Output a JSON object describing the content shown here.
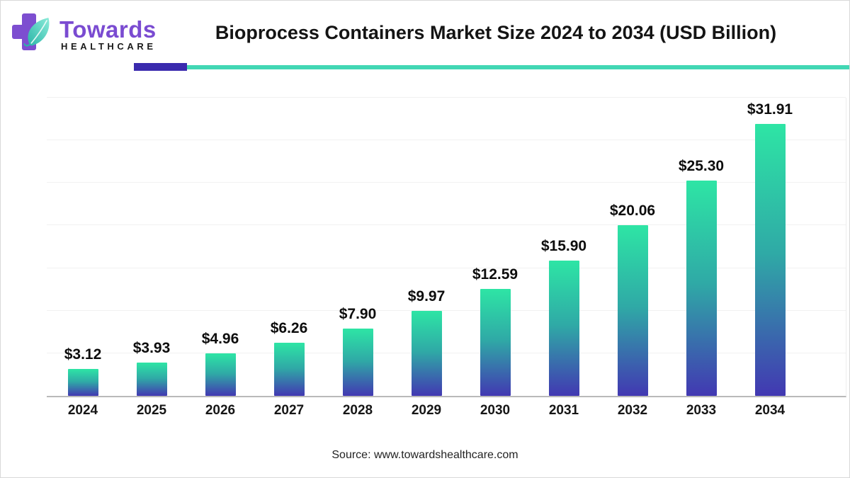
{
  "logo": {
    "brand": "Towards",
    "subtitle": "HEALTHCARE",
    "brand_color": "#7a4bd1",
    "cross_color": "#7d4ed0",
    "leaf_dark": "#2ab5a8",
    "leaf_light": "#8cecd9"
  },
  "header": {
    "title": "Bioprocess Containers Market Size 2024 to 2034 (USD Billion)",
    "divider_purple": "#3a2aae",
    "divider_teal": "#42d7b4"
  },
  "chart_data": {
    "type": "bar",
    "title": "Bioprocess Containers Market Size 2024 to 2034 (USD Billion)",
    "unit": "USD Billion",
    "categories": [
      "2024",
      "2025",
      "2026",
      "2027",
      "2028",
      "2029",
      "2030",
      "2031",
      "2032",
      "2033",
      "2034"
    ],
    "values": [
      3.12,
      3.93,
      4.96,
      6.26,
      7.9,
      9.97,
      12.59,
      15.9,
      20.06,
      25.3,
      31.91
    ],
    "value_labels": [
      "$3.12",
      "$3.93",
      "$4.96",
      "$6.26",
      "$7.90",
      "$9.97",
      "$12.59",
      "$15.90",
      "$20.06",
      "$25.30",
      "$31.91"
    ],
    "ylim": [
      0,
      35
    ],
    "grid": true,
    "gridline_count": 7,
    "legend": "none",
    "bar_gradient": {
      "top": "#2ee5a5",
      "middle": "#2fa9a6",
      "bottom": "#4238b2"
    },
    "axis_color": "#b9b9b9",
    "gridline_color": "#f1f1f1",
    "label_color": "#0d0d0d"
  },
  "footer": {
    "source": "Source: www.towardshealthcare.com"
  }
}
